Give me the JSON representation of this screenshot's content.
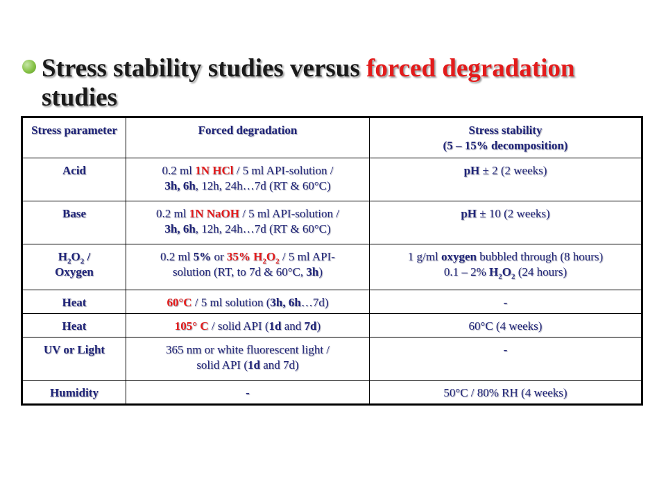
{
  "title": {
    "part1": "Stress stability studies versus",
    "part2": "forced degradation",
    "part3": "studies"
  },
  "table": {
    "headers": {
      "parameter": "Stress parameter",
      "forced": "Forced degradation",
      "stability": "Stress stability",
      "stability_sub": "(5 – 15% decomposition)"
    },
    "acid": {
      "param": "Acid",
      "f1": "0.2 ml ",
      "f2": "1N HCl",
      "f3": " / 5 ml API-solution /",
      "f4": "3h, 6h",
      "f5": ", 12h, 24h…7d (RT & 60°C)",
      "s1": "pH",
      "s2": " ± 2 (2 weeks)"
    },
    "base": {
      "param": "Base",
      "f1": "0.2 ml ",
      "f2": "1N NaOH",
      "f3": " / 5 ml API-solution /",
      "f4": "3h, 6h",
      "f5": ", 12h, 24h…7d (RT & 60°C)",
      "s1": "pH",
      "s2": " ± 10 (2 weeks)"
    },
    "h2o2": {
      "p1": "H",
      "p2": "2",
      "p3": "O",
      "p4": "2",
      "p5": " /",
      "p6": "Oxygen",
      "f1": "0.2 ml ",
      "f2": "5%",
      "f3": " or ",
      "f4": "35% H",
      "f5": "2",
      "f6": "O",
      "f7": "2",
      "f8": " / 5 ml API-",
      "f9": "solution (RT, to 7d & 60°C, ",
      "f10": "3h",
      "f11": ")",
      "s1": "1 g/ml ",
      "s2": "oxygen",
      "s3": " bubbled through (8 hours)",
      "s4": "0.1 – 2% ",
      "s5": "H",
      "s6": "2",
      "s7": "O",
      "s8": "2",
      "s9": " (24 hours)"
    },
    "heat1": {
      "param": "Heat",
      "f1": "60°C",
      "f2": " / 5 ml solution (",
      "f3": "3h, 6h",
      "f4": "…7d)",
      "s": "-"
    },
    "heat2": {
      "param": "Heat",
      "f1": "105° C",
      "f2": " / solid API (",
      "f3": "1d",
      "f4": " and ",
      "f5": "7d",
      "f6": ")",
      "s": "60°C (4 weeks)"
    },
    "uv": {
      "param": "UV or Light",
      "f1": "365 nm or white fluorescent light /",
      "f2": "solid API (",
      "f3": "1d",
      "f4": " and 7d)",
      "s": "-"
    },
    "humidity": {
      "param": "Humidity",
      "f": "-",
      "s": "50°C / 80% RH (4 weeks)"
    }
  }
}
